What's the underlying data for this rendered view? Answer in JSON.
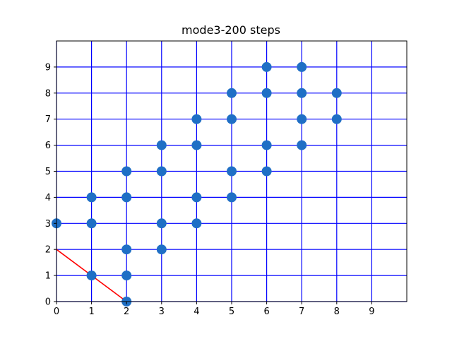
{
  "chart_data": {
    "type": "scatter",
    "title": "mode3-200 steps",
    "xlabel": "",
    "ylabel": "",
    "xlim": [
      0,
      10
    ],
    "ylim": [
      0,
      10
    ],
    "xticks": [
      0,
      1,
      2,
      3,
      4,
      5,
      6,
      7,
      8,
      9
    ],
    "yticks": [
      0,
      1,
      2,
      3,
      4,
      5,
      6,
      7,
      8,
      9
    ],
    "grid": true,
    "grid_color": "#0000ff",
    "point_color": "#1f6fc5",
    "line_color": "#ff0000",
    "points": [
      [
        0,
        3
      ],
      [
        1,
        1
      ],
      [
        1,
        3
      ],
      [
        1,
        4
      ],
      [
        2,
        0
      ],
      [
        2,
        1
      ],
      [
        2,
        2
      ],
      [
        2,
        4
      ],
      [
        2,
        5
      ],
      [
        3,
        2
      ],
      [
        3,
        3
      ],
      [
        3,
        5
      ],
      [
        3,
        6
      ],
      [
        4,
        3
      ],
      [
        4,
        4
      ],
      [
        4,
        6
      ],
      [
        4,
        7
      ],
      [
        5,
        4
      ],
      [
        5,
        5
      ],
      [
        5,
        7
      ],
      [
        5,
        8
      ],
      [
        6,
        5
      ],
      [
        6,
        6
      ],
      [
        6,
        8
      ],
      [
        6,
        9
      ],
      [
        7,
        6
      ],
      [
        7,
        7
      ],
      [
        7,
        8
      ],
      [
        7,
        9
      ],
      [
        8,
        7
      ],
      [
        8,
        8
      ]
    ],
    "line": [
      [
        0,
        2
      ],
      [
        2,
        0
      ]
    ]
  }
}
